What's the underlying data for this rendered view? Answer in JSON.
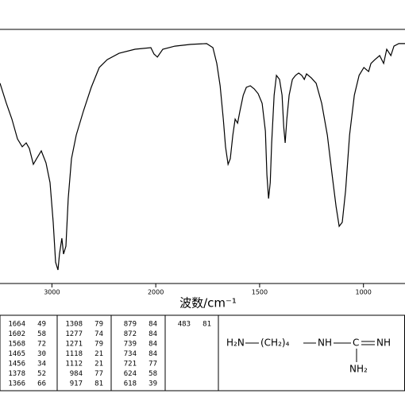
{
  "chart_data": {
    "type": "line",
    "x_label": "波数/cm⁻¹",
    "color": "#000000",
    "xlim": [
      3500,
      800
    ],
    "x_scale_break": 2000,
    "ylim": [
      0,
      100
    ],
    "xticks": [
      3000,
      2000,
      1500,
      1000
    ],
    "x": [
      3500,
      3439,
      3385,
      3332,
      3286,
      3248,
      3217,
      3179,
      3148,
      3102,
      3057,
      3018,
      2988,
      2965,
      2942,
      2927,
      2904,
      2888,
      2865,
      2843,
      2812,
      2766,
      2697,
      2621,
      2544,
      2468,
      2353,
      2200,
      2047,
      2017,
      1992,
      1966,
      1908,
      1832,
      1755,
      1725,
      1706,
      1690,
      1675,
      1664,
      1652,
      1641,
      1629,
      1618,
      1606,
      1595,
      1579,
      1564,
      1545,
      1526,
      1507,
      1488,
      1472,
      1465,
      1457,
      1449,
      1442,
      1430,
      1419,
      1404,
      1392,
      1384,
      1377,
      1369,
      1358,
      1342,
      1327,
      1312,
      1297,
      1285,
      1274,
      1251,
      1228,
      1201,
      1174,
      1151,
      1132,
      1117,
      1102,
      1086,
      1067,
      1044,
      1021,
      998,
      975,
      964,
      945,
      922,
      903,
      888,
      868,
      853,
      830,
      800
    ],
    "values": [
      78.8,
      70.9,
      64.7,
      56.9,
      53.8,
      55.3,
      53.1,
      46.9,
      49.1,
      52.2,
      47.5,
      39.7,
      24.1,
      8.4,
      5.3,
      11.6,
      17.8,
      11.6,
      14.7,
      33.4,
      49.1,
      58.4,
      67.8,
      77.2,
      85,
      88.1,
      90.6,
      92.2,
      92.8,
      90.3,
      89.1,
      92.2,
      93.4,
      94.1,
      94.4,
      92.8,
      86.6,
      77.8,
      64.7,
      53.8,
      46.9,
      49.1,
      58.4,
      64.7,
      63.1,
      67.8,
      74.1,
      77.2,
      77.8,
      76.6,
      74.7,
      70.9,
      60,
      42.8,
      33.4,
      39.7,
      55.3,
      74.1,
      81.9,
      80.3,
      74.1,
      61.6,
      55.3,
      64.7,
      74.1,
      80.3,
      81.9,
      82.8,
      81.9,
      80.3,
      82.5,
      80.9,
      78.8,
      70.9,
      58.4,
      42.8,
      30.3,
      22.5,
      24.1,
      36.6,
      58.4,
      74.1,
      81.9,
      85,
      83.4,
      86.6,
      88.1,
      89.7,
      86.6,
      92.2,
      89.7,
      93.4,
      94.4,
      94.4
    ]
  },
  "peak_table": [
    [
      [
        1664,
        49
      ],
      [
        1602,
        58
      ],
      [
        1568,
        72
      ],
      [
        1465,
        30
      ],
      [
        1456,
        34
      ],
      [
        1378,
        52
      ],
      [
        1366,
        66
      ]
    ],
    [
      [
        1308,
        79
      ],
      [
        1277,
        74
      ],
      [
        1271,
        79
      ],
      [
        1118,
        21
      ],
      [
        1112,
        21
      ],
      [
        984,
        77
      ],
      [
        917,
        81
      ]
    ],
    [
      [
        879,
        84
      ],
      [
        872,
        84
      ],
      [
        739,
        84
      ],
      [
        734,
        84
      ],
      [
        721,
        77
      ],
      [
        624,
        58
      ],
      [
        618,
        39
      ]
    ],
    [
      [
        483,
        81
      ]
    ]
  ],
  "structure": {
    "left": "H₂N",
    "chain": "(CH₂)₄",
    "nh": "NH",
    "c": "C",
    "imine": "NH",
    "amine": "NH₂"
  }
}
